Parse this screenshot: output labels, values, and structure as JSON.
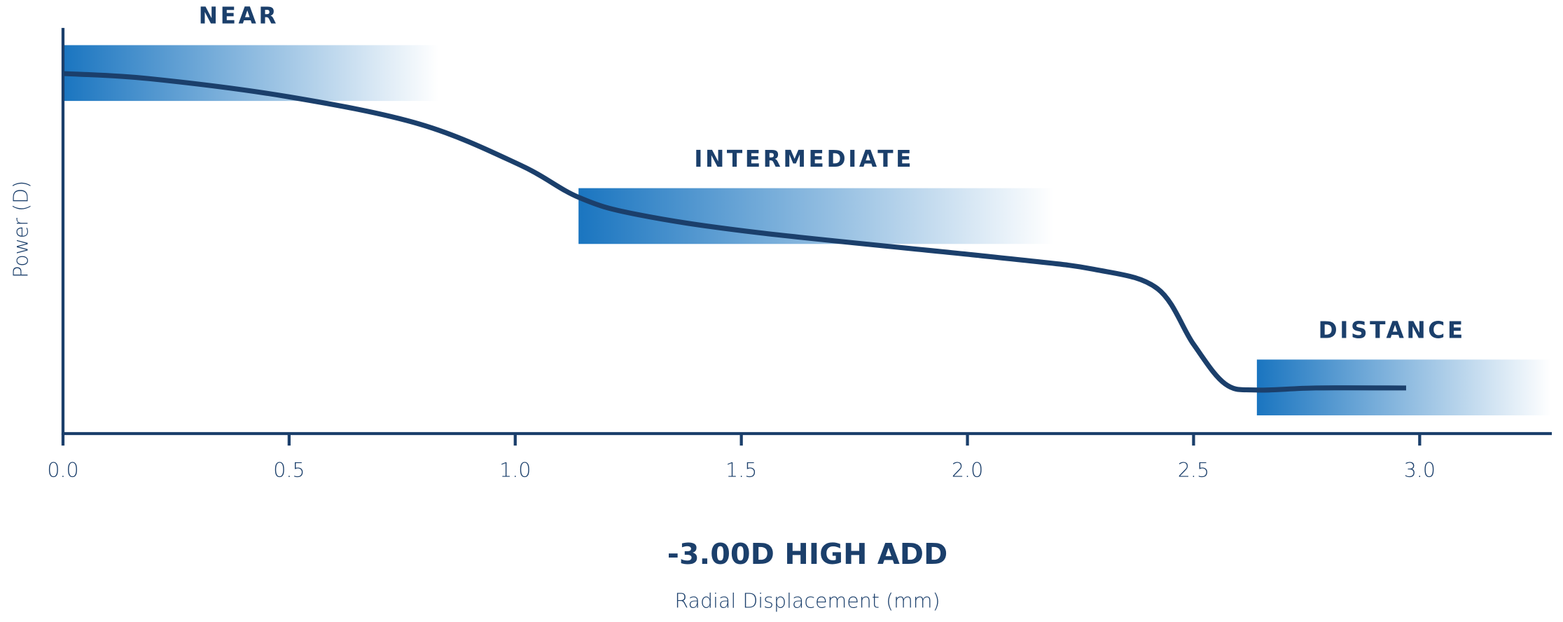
{
  "chart_data": {
    "type": "line",
    "title": "-3.00D HIGH ADD",
    "x_label": "Radial Displacement (mm)",
    "y_label": "Power (D)",
    "x": [
      0.0,
      0.19,
      0.5,
      0.79,
      1.01,
      1.14,
      1.27,
      1.54,
      2.06,
      2.28,
      2.42,
      2.5,
      2.57,
      2.64,
      2.77,
      2.97
    ],
    "series": [
      {
        "color": "#1b3f6b",
        "values": [
          3.55,
          3.5,
          3.32,
          3.05,
          2.65,
          2.33,
          2.16,
          1.98,
          1.74,
          1.62,
          1.43,
          0.88,
          0.49,
          0.43,
          0.45,
          0.45
        ]
      }
    ],
    "zones": [
      {
        "label": "NEAR",
        "x": [
          0,
          0.83
        ],
        "y": [
          3.28,
          3.83
        ]
      },
      {
        "label": "INTERMEDIATE",
        "x": [
          1.14,
          2.19
        ],
        "y": [
          1.87,
          2.42
        ]
      },
      {
        "label": "DISTANCE",
        "x": [
          2.64,
          3.29
        ],
        "y": [
          0.18,
          0.73
        ]
      }
    ],
    "zone_color": "#1a75c0",
    "xlim": [
      0,
      3.29
    ],
    "xticks": [
      {
        "value": 0,
        "label": "0.0"
      },
      0.5,
      {
        "value": 1,
        "label": "1.0"
      },
      1.5,
      {
        "value": 2,
        "label": "2.0"
      },
      2.5,
      {
        "value": 3,
        "label": "3.0"
      }
    ],
    "ylim": [
      0,
      4
    ],
    "grid": false
  }
}
